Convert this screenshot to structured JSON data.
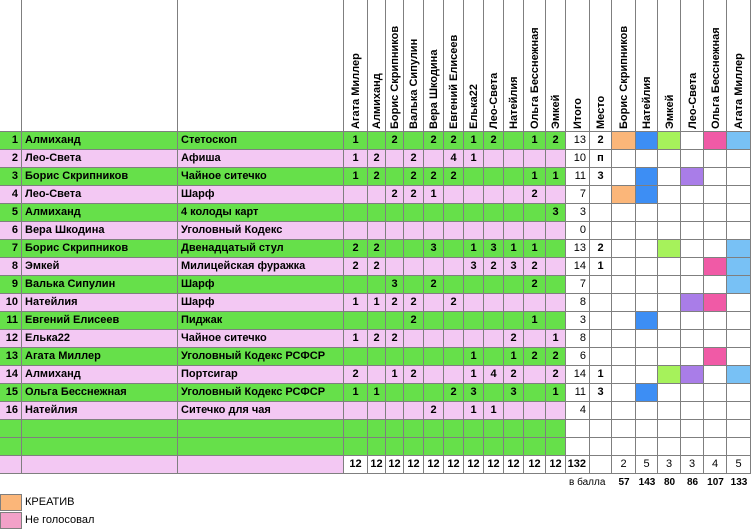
{
  "colors": {
    "green": "#66e04a",
    "pink": "#f3c8f3",
    "orange": "#fbb679",
    "blue": "#3d8ef4",
    "lime": "#a6f25b",
    "purple": "#a97de8",
    "magenta": "#f05aa6",
    "sky": "#78c1f5",
    "legend_pink": "#f2a1c8"
  },
  "vote_headers": [
    "Агата Миллер",
    "Алмиханд",
    "Борис Скрипников",
    "Валька Сипулин",
    "Вера Шкодина",
    "Евгений Елисеев",
    "Елька22",
    "Лео-Света",
    "Натейлия",
    "Ольга Бесснежная",
    "Эмкей"
  ],
  "total_header": "Итого",
  "place_header": "Место",
  "right_headers": [
    "Борис Скрипников",
    "Натейлия",
    "Эмкей",
    "Лео-Света",
    "Ольга Бесснежная",
    "Агата Миллер"
  ],
  "rows": [
    {
      "n": "1",
      "name": "Алмиханд",
      "item": "Стетоскоп",
      "votes": [
        "1",
        "",
        "2",
        "",
        "2",
        "2",
        "1",
        "2",
        "",
        "1",
        "2"
      ],
      "total": "13",
      "place": "2",
      "bg": "green",
      "rc": [
        "orange",
        "blue",
        "lime",
        "",
        "magenta",
        "sky"
      ]
    },
    {
      "n": "2",
      "name": "Лео-Света",
      "item": "Афиша",
      "votes": [
        "1",
        "2",
        "",
        "2",
        "",
        "4",
        "1",
        "",
        "",
        "",
        ""
      ],
      "total": "10",
      "place": "п",
      "bg": "pink",
      "rc": [
        "",
        "",
        "",
        "",
        "",
        ""
      ]
    },
    {
      "n": "3",
      "name": "Борис Скрипников",
      "item": "Чайное ситечко",
      "votes": [
        "1",
        "2",
        "",
        "2",
        "2",
        "2",
        "",
        "",
        "",
        "1",
        "1"
      ],
      "total": "11",
      "place": "3",
      "bg": "green",
      "rc": [
        "",
        "blue",
        "",
        "purple",
        "",
        ""
      ]
    },
    {
      "n": "4",
      "name": "Лео-Света",
      "item": "Шарф",
      "votes": [
        "",
        "",
        "2",
        "2",
        "1",
        "",
        "",
        "",
        "",
        "2",
        ""
      ],
      "total": "7",
      "place": "",
      "bg": "pink",
      "rc": [
        "orange",
        "blue",
        "",
        "",
        "",
        ""
      ]
    },
    {
      "n": "5",
      "name": "Алмиханд",
      "item": "4 колоды карт",
      "votes": [
        "",
        "",
        "",
        "",
        "",
        "",
        "",
        "",
        "",
        "",
        "3"
      ],
      "total": "3",
      "place": "",
      "bg": "green",
      "rc": [
        "",
        "",
        "",
        "",
        "",
        ""
      ]
    },
    {
      "n": "6",
      "name": "Вера Шкодина",
      "item": "Уголовный Кодекс",
      "votes": [
        "",
        "",
        "",
        "",
        "",
        "",
        "",
        "",
        "",
        "",
        ""
      ],
      "total": "0",
      "place": "",
      "bg": "pink",
      "rc": [
        "",
        "",
        "",
        "",
        "",
        ""
      ]
    },
    {
      "n": "7",
      "name": "Борис Скрипников",
      "item": "Двенадцатый стул",
      "votes": [
        "2",
        "2",
        "",
        "",
        "3",
        "",
        "1",
        "3",
        "1",
        "1",
        ""
      ],
      "total": "13",
      "place": "2",
      "bg": "green",
      "rc": [
        "",
        "",
        "lime",
        "",
        "",
        "sky"
      ]
    },
    {
      "n": "8",
      "name": "Эмкей",
      "item": "Милицейская фуражка",
      "votes": [
        "2",
        "2",
        "",
        "",
        "",
        "",
        "3",
        "2",
        "3",
        "2",
        ""
      ],
      "total": "14",
      "place": "1",
      "bg": "pink",
      "rc": [
        "",
        "",
        "",
        "",
        "magenta",
        "sky"
      ]
    },
    {
      "n": "9",
      "name": "Валька Сипулин",
      "item": "Шарф",
      "votes": [
        "",
        "",
        "3",
        "",
        "2",
        "",
        "",
        "",
        "",
        "2",
        ""
      ],
      "total": "7",
      "place": "",
      "bg": "green",
      "rc": [
        "",
        "",
        "",
        "",
        "",
        "sky"
      ]
    },
    {
      "n": "10",
      "name": "Натейлия",
      "item": "Шарф",
      "votes": [
        "1",
        "1",
        "2",
        "2",
        "",
        "2",
        "",
        "",
        "",
        "",
        ""
      ],
      "total": "8",
      "place": "",
      "bg": "pink",
      "rc": [
        "",
        "",
        "",
        "purple",
        "magenta",
        ""
      ]
    },
    {
      "n": "11",
      "name": "Евгений Елисеев",
      "item": "Пиджак",
      "votes": [
        "",
        "",
        "",
        "2",
        "",
        "",
        "",
        "",
        "",
        "1",
        ""
      ],
      "total": "3",
      "place": "",
      "bg": "green",
      "rc": [
        "",
        "blue",
        "",
        "",
        "",
        ""
      ]
    },
    {
      "n": "12",
      "name": "Елька22",
      "item": "Чайное ситечко",
      "votes": [
        "1",
        "2",
        "2",
        "",
        "",
        "",
        "",
        "",
        "2",
        "",
        "1"
      ],
      "total": "8",
      "place": "",
      "bg": "pink",
      "rc": [
        "",
        "",
        "",
        "",
        "",
        ""
      ]
    },
    {
      "n": "13",
      "name": "Агата Миллер",
      "item": "Уголовный Кодекс РСФСР",
      "votes": [
        "",
        "",
        "",
        "",
        "",
        "",
        "1",
        "",
        "1",
        "2",
        "2"
      ],
      "total": "6",
      "place": "",
      "bg": "green",
      "rc": [
        "",
        "",
        "",
        "",
        "magenta",
        ""
      ]
    },
    {
      "n": "14",
      "name": "Алмиханд",
      "item": "Портсигар",
      "votes": [
        "2",
        "",
        "1",
        "2",
        "",
        "",
        "1",
        "4",
        "2",
        "",
        "2"
      ],
      "total": "14",
      "place": "1",
      "bg": "pink",
      "rc": [
        "",
        "",
        "lime",
        "purple",
        "",
        "sky"
      ]
    },
    {
      "n": "15",
      "name": "Ольга Бесснежная",
      "item": "Уголовный Кодекс РСФСР",
      "votes": [
        "1",
        "1",
        "",
        "",
        "",
        "2",
        "3",
        "",
        "3",
        "",
        "1"
      ],
      "total": "11",
      "place": "3",
      "bg": "green",
      "rc": [
        "",
        "blue",
        "",
        "",
        "",
        ""
      ]
    },
    {
      "n": "16",
      "name": "Натейлия",
      "item": "Ситечко для чая",
      "votes": [
        "",
        "",
        "",
        "",
        "2",
        "",
        "1",
        "1",
        "",
        "",
        ""
      ],
      "total": "4",
      "place": "",
      "bg": "pink",
      "rc": [
        "",
        "",
        "",
        "",
        "",
        ""
      ]
    }
  ],
  "sum_votes": [
    "12",
    "12",
    "12",
    "12",
    "12",
    "12",
    "12",
    "12",
    "12",
    "12",
    "12"
  ],
  "sum_total": "132",
  "sum_right": [
    "2",
    "5",
    "3",
    "3",
    "4",
    "5"
  ],
  "points_label": "в балла",
  "points": [
    "57",
    "143",
    "80",
    "86",
    "107",
    "133"
  ],
  "legend": [
    {
      "text": "КРЕАТИВ",
      "color": "orange"
    },
    {
      "text": "Не голосовал",
      "color": "legend_pink"
    }
  ]
}
